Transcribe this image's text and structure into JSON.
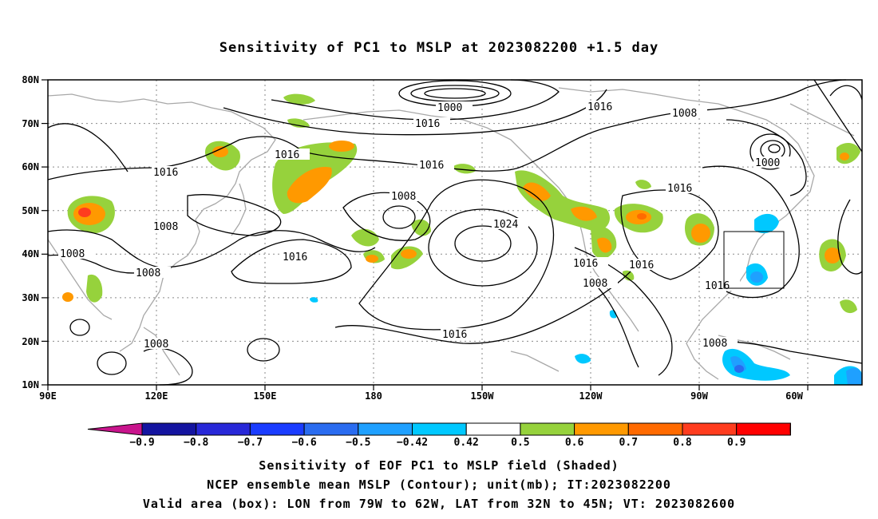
{
  "title": "Sensitivity of PC1 to MSLP at 2023082200 +1.5 day",
  "lat_labels": [
    "80N",
    "70N",
    "60N",
    "50N",
    "40N",
    "30N",
    "20N",
    "10N"
  ],
  "lon_labels": [
    "90E",
    "120E",
    "150E",
    "180",
    "150W",
    "120W",
    "90W",
    "60W"
  ],
  "contour_labels": [
    {
      "text": "1000",
      "id": "c1"
    },
    {
      "text": "1016",
      "id": "c2"
    },
    {
      "text": "1016",
      "id": "c3"
    },
    {
      "text": "1008",
      "id": "c4"
    },
    {
      "text": "1016",
      "id": "c5"
    },
    {
      "text": "1016",
      "id": "c6"
    },
    {
      "text": "1016",
      "id": "c7"
    },
    {
      "text": "1008",
      "id": "c8"
    },
    {
      "text": "1024",
      "id": "c9"
    },
    {
      "text": "1008",
      "id": "c10"
    },
    {
      "text": "1008",
      "id": "c11"
    },
    {
      "text": "1016",
      "id": "c12"
    },
    {
      "text": "1008",
      "id": "c13"
    },
    {
      "text": "1016",
      "id": "c14"
    },
    {
      "text": "1016",
      "id": "c15"
    },
    {
      "text": "1008",
      "id": "c16"
    },
    {
      "text": "1016",
      "id": "c17"
    },
    {
      "text": "1016",
      "id": "c18"
    },
    {
      "text": "1008",
      "id": "c19"
    },
    {
      "text": "1000",
      "id": "c20"
    },
    {
      "text": "1008",
      "id": "c21"
    },
    {
      "text": "1008",
      "id": "c22"
    },
    {
      "text": "1016",
      "id": "c23"
    }
  ],
  "colorbar": {
    "labels": [
      "-0.9",
      "-0.8",
      "-0.7",
      "-0.6",
      "-0.5",
      "-0.42",
      "0.42",
      "0.5",
      "0.6",
      "0.7",
      "0.8",
      "0.9"
    ],
    "colors": [
      "#1414a0",
      "#2828d8",
      "#1a3cff",
      "#2a6cf0",
      "#1fa0ff",
      "#00c8ff",
      "#ffffff",
      "#96d23c",
      "#ff9900",
      "#ff6a00",
      "#ff3c1e",
      "#ff0000"
    ],
    "low_end_color": "#c8148c",
    "high_end_color": "#ff9ecf"
  },
  "caption": {
    "line1": "Sensitivity of EOF PC1 to MSLP field (Shaded)",
    "line2": "NCEP ensemble mean MSLP (Contour); unit(mb); IT:2023082200",
    "line3": "Valid area (box): LON from 79W to 62W, LAT from 32N to 45N; VT: 2023082600"
  },
  "valid_box": {
    "lon_from": "79W",
    "lon_to": "62W",
    "lat_from": "32N",
    "lat_to": "45N"
  }
}
